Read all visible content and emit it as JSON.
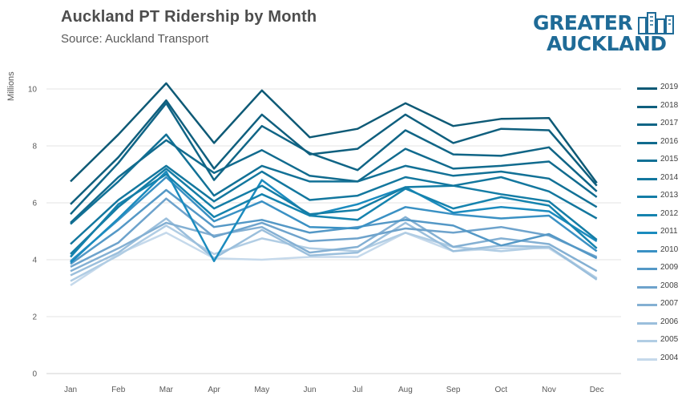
{
  "title": "Auckland PT Ridership by Month",
  "subtitle": "Source: Auckland Transport",
  "logo": {
    "line1": "GREATER",
    "line2": "AUCKLAND"
  },
  "chart_data": {
    "type": "line",
    "title": "Auckland PT Ridership by Month",
    "subtitle": "Source: Auckland Transport",
    "xlabel": "",
    "ylabel": "Millions",
    "ylim": [
      0,
      10.8
    ],
    "yticks": [
      0,
      2,
      4,
      6,
      8,
      10
    ],
    "grid": "horizontal",
    "legend_position": "right",
    "categories": [
      "Jan",
      "Feb",
      "Mar",
      "Apr",
      "May",
      "Jun",
      "Jul",
      "Aug",
      "Sep",
      "Oct",
      "Nov",
      "Dec"
    ],
    "series": [
      {
        "name": "2019",
        "color": "#0e5a76",
        "values": [
          6.75,
          8.4,
          10.2,
          8.1,
          9.95,
          8.3,
          8.6,
          9.5,
          8.7,
          8.95,
          8.98,
          6.7
        ]
      },
      {
        "name": "2018",
        "color": "#0f5f7e",
        "values": [
          5.95,
          7.6,
          9.6,
          7.2,
          9.1,
          7.7,
          7.9,
          9.1,
          8.1,
          8.6,
          8.55,
          6.6
        ]
      },
      {
        "name": "2017",
        "color": "#106586",
        "values": [
          5.6,
          7.4,
          9.5,
          6.8,
          8.7,
          7.75,
          7.15,
          8.55,
          7.7,
          7.65,
          7.95,
          6.4
        ]
      },
      {
        "name": "2016",
        "color": "#116b8e",
        "values": [
          5.3,
          6.9,
          8.2,
          7.05,
          7.85,
          6.95,
          6.75,
          7.9,
          7.2,
          7.3,
          7.45,
          6.2
        ]
      },
      {
        "name": "2015",
        "color": "#127196",
        "values": [
          5.25,
          6.75,
          8.4,
          6.25,
          7.3,
          6.75,
          6.75,
          7.3,
          6.95,
          7.1,
          6.85,
          5.85
        ]
      },
      {
        "name": "2014",
        "color": "#13779e",
        "values": [
          4.55,
          6.1,
          7.3,
          6.05,
          7.1,
          6.1,
          6.25,
          6.9,
          6.6,
          6.9,
          6.4,
          5.45
        ]
      },
      {
        "name": "2013",
        "color": "#147da6",
        "values": [
          4.2,
          5.85,
          7.2,
          5.8,
          6.6,
          5.6,
          5.75,
          6.55,
          6.6,
          6.3,
          6.05,
          4.7
        ]
      },
      {
        "name": "2012",
        "color": "#1583ae",
        "values": [
          4.1,
          5.95,
          7.0,
          5.5,
          6.3,
          5.55,
          5.4,
          6.5,
          5.8,
          6.2,
          5.9,
          4.4
        ]
      },
      {
        "name": "2011",
        "color": "#1b8bbe",
        "values": [
          3.9,
          5.45,
          7.1,
          3.95,
          6.8,
          5.55,
          5.95,
          6.55,
          5.65,
          5.85,
          5.7,
          4.65
        ]
      },
      {
        "name": "2010",
        "color": "#3a91c4",
        "values": [
          3.95,
          5.4,
          6.9,
          5.35,
          6.05,
          5.15,
          5.1,
          5.85,
          5.6,
          5.45,
          5.55,
          4.3
        ]
      },
      {
        "name": "2009",
        "color": "#5498c6",
        "values": [
          3.85,
          5.05,
          6.45,
          5.15,
          5.4,
          4.95,
          5.15,
          5.4,
          5.2,
          4.5,
          4.9,
          4.05
        ]
      },
      {
        "name": "2008",
        "color": "#6ea3cc",
        "values": [
          3.75,
          4.6,
          6.15,
          4.8,
          5.3,
          4.65,
          4.75,
          5.1,
          4.95,
          5.15,
          4.85,
          4.1
        ]
      },
      {
        "name": "2007",
        "color": "#84b0d3",
        "values": [
          3.6,
          4.4,
          5.3,
          4.85,
          5.15,
          4.25,
          4.45,
          5.5,
          4.45,
          4.75,
          4.55,
          3.6
        ]
      },
      {
        "name": "2006",
        "color": "#9bbfdc",
        "values": [
          3.45,
          4.25,
          5.45,
          4.05,
          5.05,
          4.15,
          4.25,
          5.3,
          4.3,
          4.5,
          4.45,
          3.3
        ]
      },
      {
        "name": "2005",
        "color": "#b1cde4",
        "values": [
          3.25,
          4.15,
          5.2,
          4.2,
          4.75,
          4.4,
          4.3,
          4.95,
          4.45,
          4.3,
          4.45,
          3.35
        ]
      },
      {
        "name": "2004",
        "color": "#c5d9eb",
        "values": [
          3.1,
          4.2,
          4.95,
          4.05,
          4.0,
          4.1,
          4.1,
          4.95,
          4.3,
          4.4,
          4.4,
          3.35
        ]
      }
    ]
  }
}
